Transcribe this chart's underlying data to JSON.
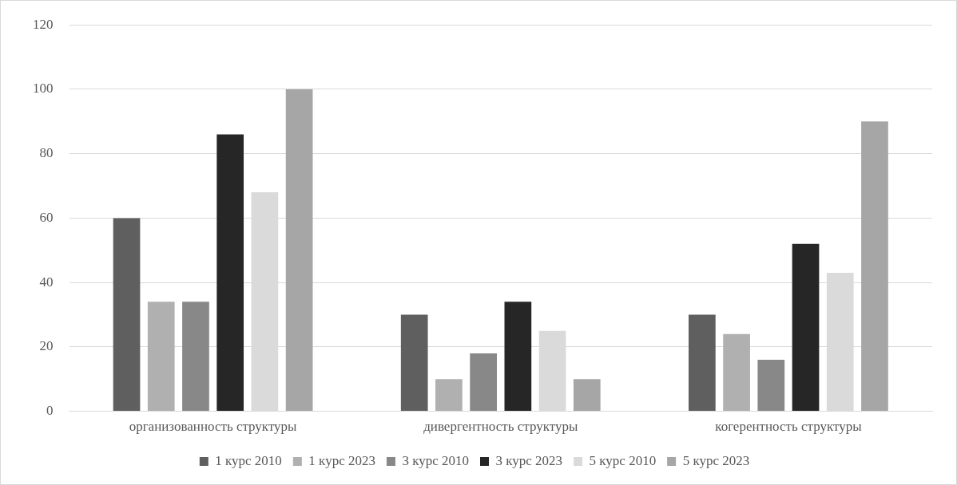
{
  "chart_data": {
    "type": "bar",
    "categories": [
      "организованность структуры",
      "дивергентность структуры",
      "когерентность структуры"
    ],
    "series": [
      {
        "name": "1 курс 2010",
        "color": "#5f5f5f",
        "values": [
          60,
          30,
          30
        ]
      },
      {
        "name": "1 курс 2023",
        "color": "#b0b0b0",
        "values": [
          34,
          10,
          24
        ]
      },
      {
        "name": "3 курс 2010",
        "color": "#888888",
        "values": [
          34,
          18,
          16
        ]
      },
      {
        "name": "3 курс 2023",
        "color": "#262626",
        "values": [
          86,
          34,
          52
        ]
      },
      {
        "name": "5 курс 2010",
        "color": "#dadada",
        "values": [
          68,
          25,
          43
        ]
      },
      {
        "name": "5 курс 2023",
        "color": "#a6a6a6",
        "values": [
          100,
          10,
          90
        ]
      }
    ],
    "ylim": [
      0,
      120
    ],
    "yticks": [
      0,
      20,
      40,
      60,
      80,
      100,
      120
    ],
    "grid": "y",
    "legend": "bottom"
  }
}
